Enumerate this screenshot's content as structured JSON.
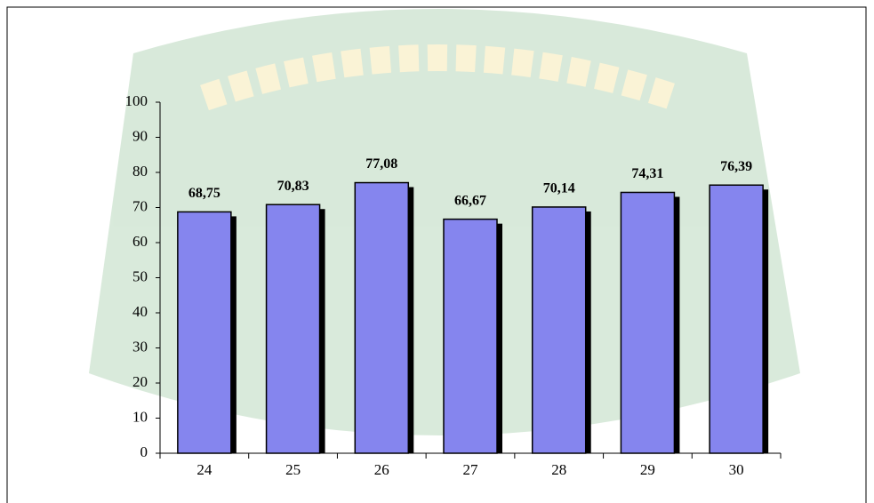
{
  "chart_data": {
    "type": "bar",
    "categories": [
      "24",
      "25",
      "26",
      "27",
      "28",
      "29",
      "30"
    ],
    "values": [
      68.75,
      70.83,
      77.08,
      66.67,
      70.14,
      74.31,
      76.39
    ],
    "value_labels": [
      "68,75",
      "70,83",
      "77,08",
      "66,67",
      "70,14",
      "74,31",
      "76,39"
    ],
    "color": "#8585ee",
    "ylim": [
      0,
      100
    ],
    "yticks": [
      0,
      10,
      20,
      30,
      40,
      50,
      60,
      70,
      80,
      90,
      100
    ]
  }
}
